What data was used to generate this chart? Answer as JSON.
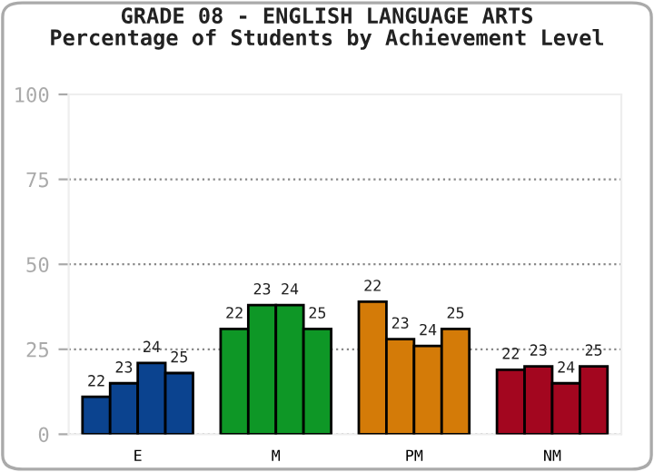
{
  "chart_data": {
    "type": "bar",
    "title": "GRADE 08 - ENGLISH LANGUAGE ARTS",
    "subtitle": "Percentage of Students by Achievement Level",
    "categories": [
      "E",
      "M",
      "PM",
      "NM"
    ],
    "series": [
      {
        "name": "22",
        "colors": [
          "#0b438f",
          "#0e9726",
          "#d47b08",
          "#a3061f"
        ],
        "values": [
          11,
          31,
          39,
          19
        ]
      },
      {
        "name": "23",
        "colors": [
          "#0b438f",
          "#0e9726",
          "#d47b08",
          "#a3061f"
        ],
        "values": [
          15,
          38,
          28,
          20
        ]
      },
      {
        "name": "24",
        "colors": [
          "#0b438f",
          "#0e9726",
          "#d47b08",
          "#a3061f"
        ],
        "values": [
          21,
          38,
          26,
          15
        ]
      },
      {
        "name": "25",
        "colors": [
          "#0b438f",
          "#0e9726",
          "#d47b08",
          "#a3061f"
        ],
        "values": [
          18,
          31,
          31,
          20
        ]
      }
    ],
    "ylim": [
      0,
      100
    ],
    "yticks": [
      0,
      25,
      50,
      75,
      100
    ],
    "grid": "y",
    "legend": false
  }
}
